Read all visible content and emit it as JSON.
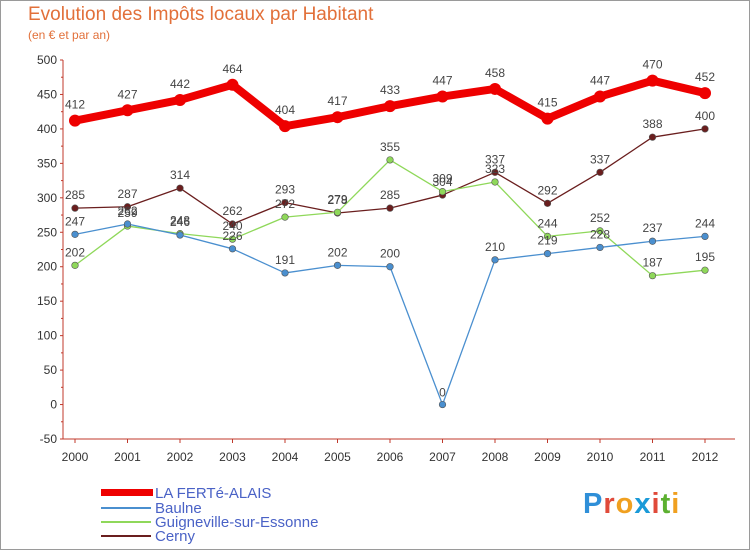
{
  "header": {
    "title": "Evolution des Impôts locaux par Habitant",
    "subtitle": "(en € et par an)"
  },
  "brand": {
    "letters": [
      "P",
      "r",
      "o",
      "x",
      "i",
      "t",
      "i"
    ],
    "colors": [
      "#2f8fd8",
      "#e04a3a",
      "#f0a020",
      "#1a9ad8",
      "#e04a3a",
      "#5cb030",
      "#f0a020"
    ]
  },
  "chart_data": {
    "type": "line",
    "title": "Evolution des Impôts locaux par Habitant",
    "subtitle": "(en € et par an)",
    "xlabel": "",
    "ylabel": "",
    "ylim": [
      -50,
      500
    ],
    "yticks": [
      "-50",
      "0",
      "50",
      "100",
      "150",
      "200",
      "250",
      "300",
      "350",
      "400",
      "450",
      "500"
    ],
    "categories": [
      "2000",
      "2001",
      "2002",
      "2003",
      "2004",
      "2005",
      "2006",
      "2007",
      "2008",
      "2009",
      "2010",
      "2011",
      "2012"
    ],
    "grid": false,
    "legend_position": "bottom-left",
    "series": [
      {
        "name": "LA FERTé-ALAIS",
        "color": "#ee0000",
        "values": [
          412,
          427,
          442,
          464,
          404,
          417,
          433,
          447,
          458,
          415,
          447,
          470,
          452
        ]
      },
      {
        "name": "Baulne",
        "color": "#4a8fcf",
        "values": [
          247,
          262,
          246,
          226,
          191,
          202,
          200,
          0,
          210,
          219,
          228,
          237,
          244
        ]
      },
      {
        "name": "Guigneville-sur-Essonne",
        "color": "#8fd85a",
        "values": [
          202,
          259,
          248,
          240,
          272,
          279,
          355,
          309,
          323,
          244,
          252,
          187,
          195
        ]
      },
      {
        "name": "Cerny",
        "color": "#6a1e1e",
        "values": [
          285,
          287,
          314,
          262,
          293,
          278,
          285,
          304,
          337,
          292,
          337,
          388,
          400
        ]
      }
    ]
  }
}
